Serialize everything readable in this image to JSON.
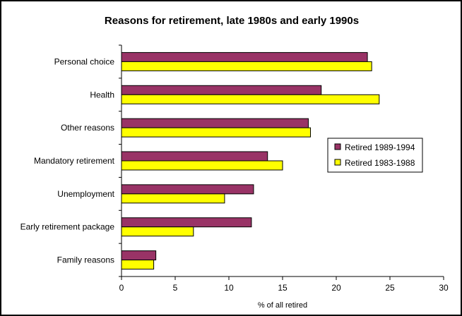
{
  "chart_data": {
    "type": "bar",
    "orientation": "horizontal",
    "title": "Reasons for retirement, late 1980s and early 1990s",
    "xlabel": "% of all retired",
    "ylabel": "",
    "xlim": [
      0,
      30
    ],
    "xticks": [
      0,
      5,
      10,
      15,
      20,
      25,
      30
    ],
    "categories": [
      "Personal choice",
      "Health",
      "Other reasons",
      "Mandatory retirement",
      "Unemployment",
      "Early retirement package",
      "Family reasons"
    ],
    "series": [
      {
        "name": "Retired 1989-1994",
        "color": "#993366",
        "values": [
          22.9,
          18.6,
          17.4,
          13.6,
          12.3,
          12.1,
          3.2
        ]
      },
      {
        "name": "Retired 1983-1988",
        "color": "#ffff00",
        "values": [
          23.3,
          24.0,
          17.6,
          15.0,
          9.6,
          6.7,
          3.0
        ]
      }
    ],
    "legend": "right",
    "grid": false
  }
}
